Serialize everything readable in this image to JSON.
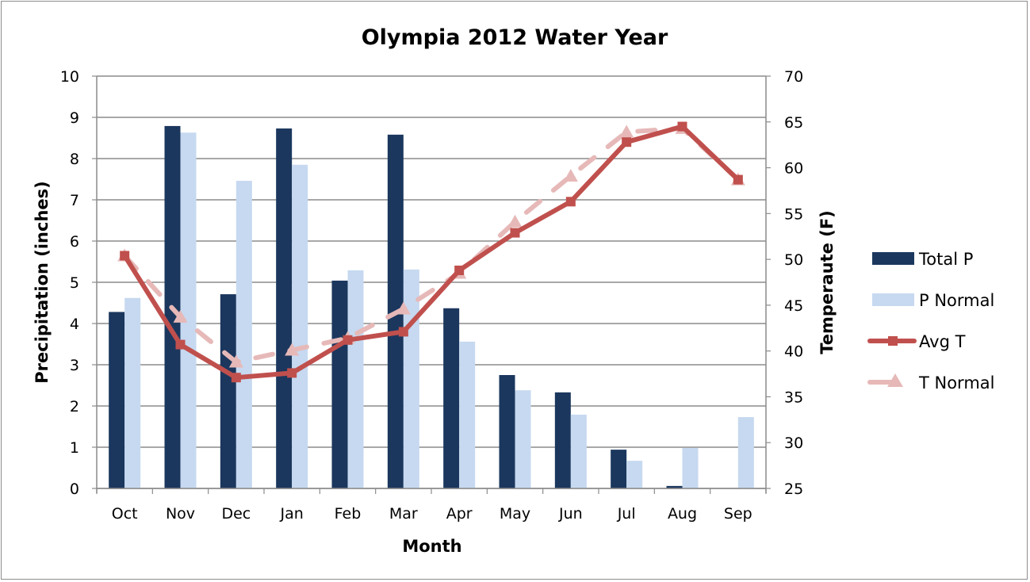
{
  "chart_data": {
    "type": "bar",
    "title": "Olympia 2012 Water Year",
    "xlabel": "Month",
    "ylabel": "Precipitation (inches)",
    "y2label": "Temperaute (F)",
    "ylim": [
      0,
      10
    ],
    "y2lim": [
      25,
      70
    ],
    "yticks": [
      "0",
      "1",
      "2",
      "3",
      "4",
      "5",
      "6",
      "7",
      "8",
      "9",
      "10"
    ],
    "y2ticks": [
      "25",
      "30",
      "35",
      "40",
      "45",
      "50",
      "55",
      "60",
      "65",
      "70"
    ],
    "grid": true,
    "legend_position": "right",
    "categories": [
      "Oct",
      "Nov",
      "Dec",
      "Jan",
      "Feb",
      "Mar",
      "Apr",
      "May",
      "Jun",
      "Jul",
      "Aug",
      "Sep"
    ],
    "series": [
      {
        "name": "Total P",
        "type": "bar",
        "axis": "left",
        "color": "#1b375e",
        "values": [
          4.28,
          8.79,
          4.71,
          8.73,
          5.04,
          8.58,
          4.37,
          2.75,
          2.33,
          0.94,
          0.06,
          0
        ]
      },
      {
        "name": "P Normal",
        "type": "bar",
        "axis": "left",
        "color": "#c6d9f0",
        "values": [
          4.62,
          8.63,
          7.46,
          7.85,
          5.29,
          5.31,
          3.56,
          2.38,
          1.79,
          0.67,
          0.98,
          1.73
        ]
      },
      {
        "name": "Avg T",
        "type": "line",
        "axis": "right",
        "color": "#c0504d",
        "marker": "square",
        "dashed": false,
        "values": [
          50.4,
          40.7,
          37.1,
          37.6,
          41.2,
          42.1,
          48.8,
          52.9,
          56.3,
          62.8,
          64.5,
          58.7
        ]
      },
      {
        "name": "T Normal",
        "type": "line",
        "axis": "right",
        "color": "#e6b9b8",
        "marker": "triangle",
        "dashed": true,
        "values": [
          50.4,
          43.7,
          38.8,
          40.1,
          41.4,
          44.6,
          48.5,
          54.1,
          59.1,
          63.9,
          64.3,
          58.7
        ]
      }
    ]
  }
}
